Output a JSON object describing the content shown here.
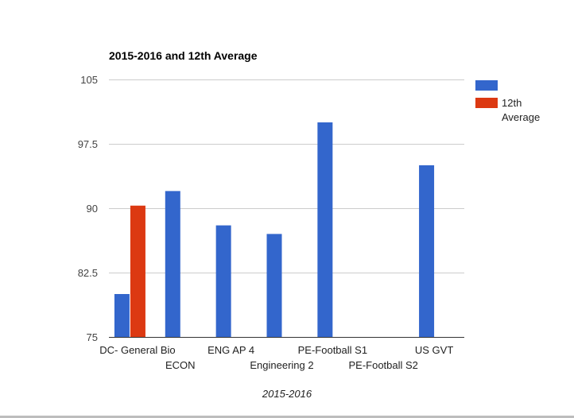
{
  "chart_data": {
    "type": "bar",
    "title": "2015-2016 and 12th Average",
    "xlabel": "2015-2016",
    "ylabel": "",
    "ylim": [
      75,
      105
    ],
    "yticks": [
      "105",
      "97.5",
      "90",
      "82.5",
      "75"
    ],
    "grid": true,
    "legend_position": "right",
    "categories": [
      "DC- General Bio",
      "ECON",
      "ENG AP 4",
      "Engineering 2",
      "PE-Football S1",
      "PE-Football S2",
      "US GVT"
    ],
    "series": [
      {
        "name": "",
        "color": "#3366cc",
        "values": [
          80,
          92,
          88,
          87,
          100,
          null,
          95
        ]
      },
      {
        "name": "12th Average",
        "color": "#dc3912",
        "values": [
          90.3,
          null,
          null,
          null,
          null,
          null,
          null
        ]
      }
    ]
  }
}
